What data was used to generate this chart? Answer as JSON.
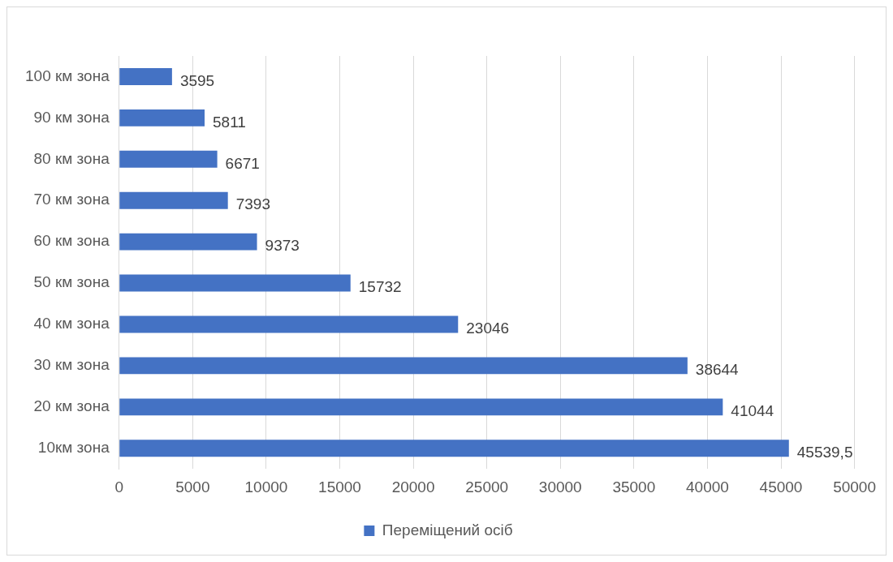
{
  "chart_data": {
    "type": "bar",
    "orientation": "horizontal",
    "categories": [
      "100 км зона",
      "90 км зона",
      "80 км зона",
      "70 км зона",
      "60 км зона",
      "50 км зона",
      "40 км зона",
      "30 км зона",
      "20 км зона",
      "10км зона"
    ],
    "series": [
      {
        "name": "Переміщений осіб",
        "color": "#4472c4",
        "values": [
          3595,
          5811,
          6671,
          7393,
          9373,
          15732,
          23046,
          38644,
          41044,
          45539.5
        ],
        "value_labels": [
          "3595",
          "5811",
          "6671",
          "7393",
          "9373",
          "15732",
          "23046",
          "38644",
          "41044",
          "45539,5"
        ]
      }
    ],
    "xlim": [
      0,
      50000
    ],
    "xticks": [
      0,
      5000,
      10000,
      15000,
      20000,
      25000,
      30000,
      35000,
      40000,
      45000,
      50000
    ],
    "grid": "x",
    "legend": "bottom"
  }
}
